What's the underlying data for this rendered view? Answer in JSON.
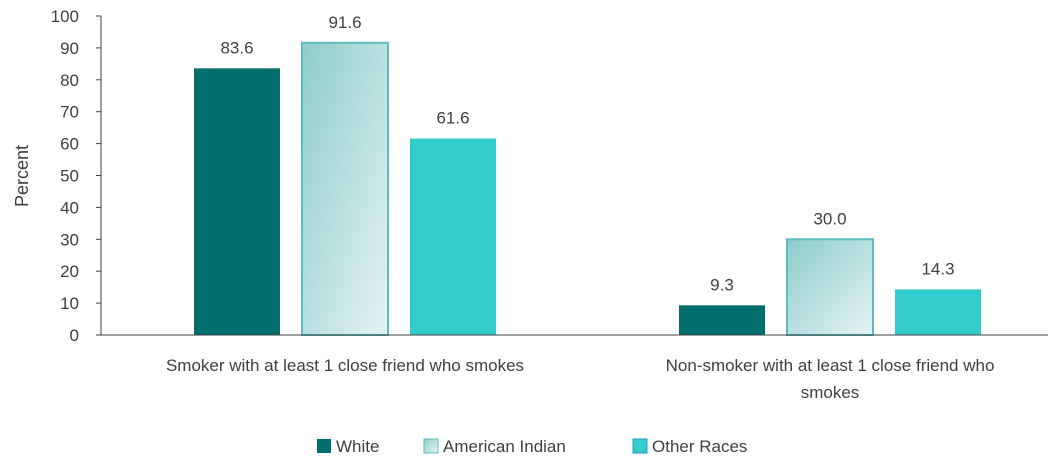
{
  "chart_data": {
    "type": "bar",
    "title": "",
    "xlabel": "",
    "ylabel": "Percent",
    "ylim": [
      0,
      100
    ],
    "yticks": [
      0,
      10,
      20,
      30,
      40,
      50,
      60,
      70,
      80,
      90,
      100
    ],
    "ytick_labels": [
      "0",
      "10",
      "20",
      "30",
      "40",
      "50",
      "60",
      "70",
      "80",
      "90",
      "100"
    ],
    "categories": [
      [
        "Smoker with at least 1 close friend who smokes"
      ],
      [
        "Non-smoker with at least 1 close friend who",
        "smokes"
      ]
    ],
    "series": [
      {
        "name": "White",
        "values": [
          83.6,
          9.3
        ],
        "labels": [
          "83.6",
          "9.3"
        ],
        "color": "#006e6a",
        "style": "solid"
      },
      {
        "name": "American Indian",
        "values": [
          91.6,
          30.0
        ],
        "labels": [
          "91.6",
          "30.0"
        ],
        "color": "#8dcdcc",
        "gradient_end": "#e6f2f3",
        "stroke": "#5dbcc0",
        "style": "gradient"
      },
      {
        "name": "Other Races",
        "values": [
          61.6,
          14.3
        ],
        "labels": [
          "61.6",
          "14.3"
        ],
        "color": "#33cccc",
        "style": "solid"
      }
    ],
    "grid": false,
    "legend": "bottom-center",
    "axis_color": "#404040"
  }
}
